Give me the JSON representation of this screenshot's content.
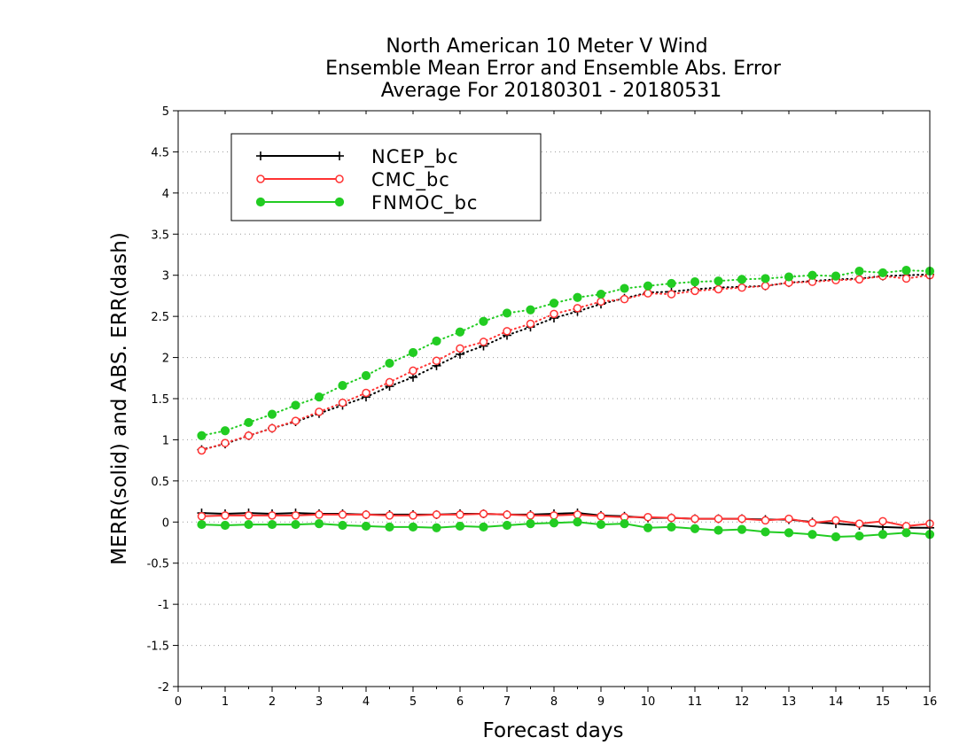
{
  "chart_data": {
    "type": "line",
    "title_lines": [
      "North American 10 Meter V Wind",
      "Ensemble Mean Error and Ensemble Abs. Error",
      "Average For 20180301 - 20180531"
    ],
    "xlabel": "Forecast days",
    "ylabel": "MERR(solid) and ABS. ERR(dash)",
    "xlim": [
      0,
      16
    ],
    "ylim": [
      -2,
      5
    ],
    "x_ticks": [
      0,
      1,
      2,
      3,
      4,
      5,
      6,
      7,
      8,
      9,
      10,
      11,
      12,
      13,
      14,
      15,
      16
    ],
    "y_ticks": [
      -2,
      -1.5,
      -1,
      -0.5,
      0,
      0.5,
      1,
      1.5,
      2,
      2.5,
      3,
      3.5,
      4,
      4.5,
      5
    ],
    "y_tick_labels": [
      "-2",
      "-1.5",
      "-1",
      "-0.5",
      "0",
      "0.5",
      "1",
      "1.5",
      "2",
      "2.5",
      "3",
      "3.5",
      "4",
      "4.5",
      "5"
    ],
    "grid": "horizontal dotted",
    "legend_position": "top-left",
    "x": [
      0.5,
      1,
      1.5,
      2,
      2.5,
      3,
      3.5,
      4,
      4.5,
      5,
      5.5,
      6,
      6.5,
      7,
      7.5,
      8,
      8.5,
      9,
      9.5,
      10,
      10.5,
      11,
      11.5,
      12,
      12.5,
      13,
      13.5,
      14,
      14.5,
      15,
      15.5,
      16
    ],
    "series": [
      {
        "name": "NCEP_bc",
        "color": "#000000",
        "marker": "plus",
        "merr": [
          0.11,
          0.1,
          0.11,
          0.1,
          0.11,
          0.1,
          0.1,
          0.09,
          0.09,
          0.09,
          0.09,
          0.1,
          0.1,
          0.09,
          0.09,
          0.1,
          0.11,
          0.08,
          0.07,
          0.05,
          0.05,
          0.04,
          0.04,
          0.04,
          0.03,
          0.03,
          0.0,
          -0.02,
          -0.04,
          -0.06,
          -0.07,
          -0.07
        ],
        "abs_err": [
          0.88,
          0.95,
          1.05,
          1.14,
          1.22,
          1.32,
          1.42,
          1.52,
          1.65,
          1.76,
          1.9,
          2.04,
          2.14,
          2.27,
          2.37,
          2.48,
          2.56,
          2.65,
          2.72,
          2.79,
          2.8,
          2.83,
          2.85,
          2.86,
          2.87,
          2.91,
          2.93,
          2.95,
          2.96,
          2.99,
          3.0,
          3.01
        ]
      },
      {
        "name": "CMC_bc",
        "color": "#ff3333",
        "marker": "open-circle",
        "merr": [
          0.07,
          0.08,
          0.08,
          0.08,
          0.08,
          0.09,
          0.09,
          0.09,
          0.08,
          0.08,
          0.09,
          0.09,
          0.1,
          0.09,
          0.08,
          0.08,
          0.09,
          0.07,
          0.06,
          0.06,
          0.05,
          0.04,
          0.04,
          0.04,
          0.02,
          0.04,
          -0.01,
          0.02,
          -0.02,
          0.01,
          -0.05,
          -0.02
        ],
        "abs_err": [
          0.87,
          0.96,
          1.05,
          1.14,
          1.23,
          1.34,
          1.45,
          1.57,
          1.7,
          1.84,
          1.96,
          2.11,
          2.19,
          2.32,
          2.41,
          2.53,
          2.6,
          2.68,
          2.71,
          2.78,
          2.77,
          2.81,
          2.83,
          2.85,
          2.87,
          2.91,
          2.92,
          2.94,
          2.95,
          2.99,
          2.96,
          3.0
        ]
      },
      {
        "name": "FNMOC_bc",
        "color": "#22cc22",
        "marker": "filled-circle",
        "merr": [
          -0.03,
          -0.04,
          -0.03,
          -0.03,
          -0.03,
          -0.02,
          -0.04,
          -0.05,
          -0.06,
          -0.06,
          -0.07,
          -0.05,
          -0.06,
          -0.04,
          -0.02,
          -0.01,
          0.0,
          -0.03,
          -0.02,
          -0.07,
          -0.06,
          -0.08,
          -0.1,
          -0.09,
          -0.12,
          -0.13,
          -0.15,
          -0.18,
          -0.17,
          -0.15,
          -0.13,
          -0.15
        ],
        "abs_err": [
          1.05,
          1.11,
          1.21,
          1.31,
          1.42,
          1.52,
          1.66,
          1.78,
          1.93,
          2.06,
          2.2,
          2.31,
          2.44,
          2.54,
          2.58,
          2.66,
          2.73,
          2.77,
          2.84,
          2.87,
          2.9,
          2.92,
          2.93,
          2.95,
          2.96,
          2.98,
          3.0,
          2.99,
          3.05,
          3.03,
          3.06,
          3.05
        ]
      }
    ]
  }
}
